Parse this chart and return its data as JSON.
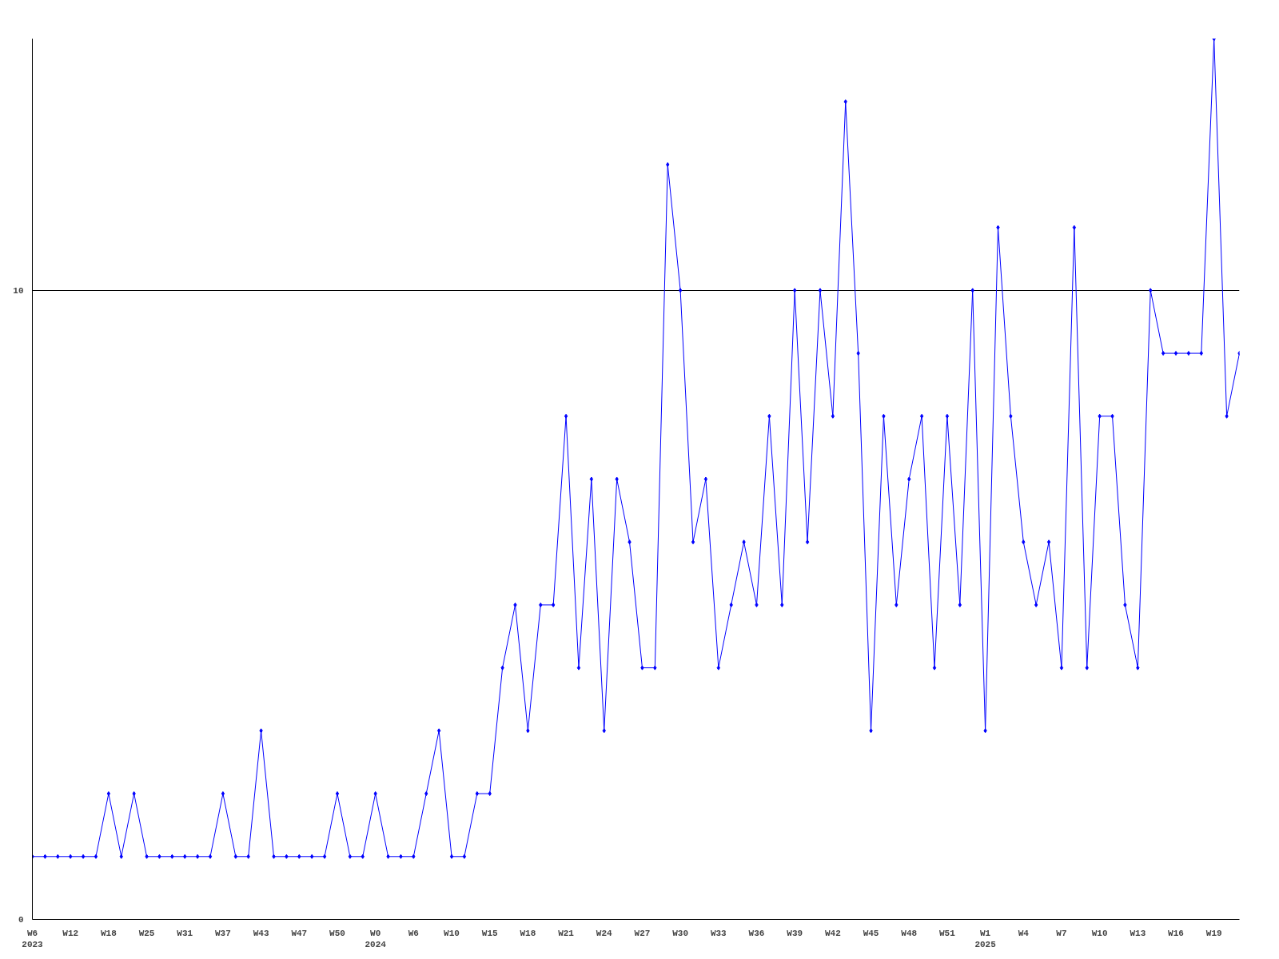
{
  "chart_data": {
    "type": "line",
    "color": "#0000ff",
    "marker": "diamond",
    "grid": "y",
    "line_style": "solid",
    "categories": [
      "W6\n2023",
      null,
      null,
      "W12",
      null,
      null,
      "W18",
      null,
      null,
      "W25",
      null,
      null,
      "W31",
      null,
      null,
      "W37",
      null,
      null,
      "W43",
      null,
      null,
      "W47",
      null,
      null,
      "W50",
      null,
      null,
      "W0\n2024",
      null,
      null,
      "W6",
      null,
      null,
      "W10",
      null,
      null,
      "W15",
      null,
      null,
      "W18",
      null,
      null,
      "W21",
      null,
      null,
      "W24",
      null,
      null,
      "W27",
      null,
      null,
      "W30",
      null,
      null,
      "W33",
      null,
      null,
      "W36",
      null,
      null,
      "W39",
      null,
      null,
      "W42",
      null,
      null,
      "W45",
      null,
      null,
      "W48",
      null,
      null,
      "W51",
      null,
      null,
      "W1\n2025",
      null,
      null,
      "W4",
      null,
      null,
      "W7",
      null,
      null,
      "W10",
      null,
      null,
      "W13",
      null,
      null,
      "W16",
      null,
      null,
      "W19",
      null,
      null
    ],
    "values": [
      1,
      1,
      1,
      1,
      1,
      1,
      2,
      1,
      2,
      1,
      1,
      1,
      1,
      1,
      1,
      2,
      1,
      1,
      3,
      1,
      1,
      1,
      1,
      1,
      2,
      1,
      1,
      2,
      1,
      1,
      1,
      2,
      3,
      1,
      1,
      2,
      2,
      4,
      5,
      3,
      5,
      5,
      8,
      4,
      7,
      3,
      7,
      6,
      4,
      4,
      12,
      10,
      6,
      7,
      4,
      5,
      6,
      5,
      8,
      5,
      10,
      6,
      10,
      8,
      13,
      9,
      3,
      8,
      5,
      7,
      8,
      4,
      8,
      5,
      10,
      3,
      11,
      8,
      6,
      5,
      6,
      4,
      11,
      4,
      8,
      8,
      5,
      4,
      10,
      9,
      9,
      9,
      9,
      14,
      8,
      9
    ],
    "ylim": [
      0,
      14
    ],
    "yticks": [
      0,
      10
    ]
  }
}
